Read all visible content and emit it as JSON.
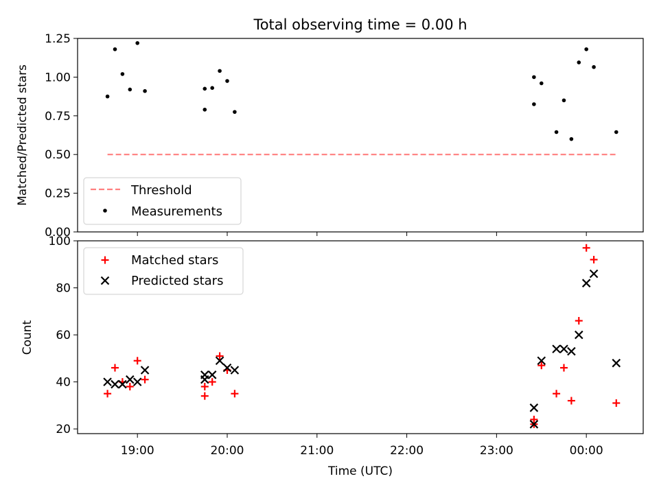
{
  "chart_data": [
    {
      "type": "scatter",
      "title": "Total observing time = 0.00 h",
      "ylabel": "Matched/Predicted stars",
      "xlim": [
        "18:20",
        "00:38"
      ],
      "ylim": [
        0,
        1.25
      ],
      "yticks": [
        0.0,
        0.25,
        0.5,
        0.75,
        1.0,
        1.25
      ],
      "ytick_labels": [
        "0.00",
        "0.25",
        "0.50",
        "0.75",
        "1.00",
        "1.25"
      ],
      "legend_position": "lower-left",
      "threshold": {
        "name": "Threshold",
        "color": "#ff7f7f",
        "x_start": "18:40",
        "x_end": "00:20",
        "y": 0.5
      },
      "series": [
        {
          "name": "Measurements",
          "color": "#000000",
          "marker": "dot",
          "x": [
            "18:40",
            "18:45",
            "18:50",
            "18:55",
            "19:00",
            "19:05",
            "19:45",
            "19:45",
            "19:50",
            "19:55",
            "20:00",
            "20:05",
            "23:25",
            "23:25",
            "23:30",
            "23:40",
            "23:45",
            "23:50",
            "23:55",
            "00:00",
            "00:05",
            "00:20"
          ],
          "y": [
            0.875,
            1.18,
            1.02,
            0.92,
            1.22,
            0.91,
            0.925,
            0.79,
            0.93,
            1.04,
            0.975,
            0.775,
            1.0,
            0.825,
            0.96,
            0.645,
            0.85,
            0.6,
            1.095,
            1.18,
            1.065,
            0.645
          ]
        }
      ]
    },
    {
      "type": "scatter",
      "xlabel": "Time (UTC)",
      "ylabel": "Count",
      "xlim": [
        "18:20",
        "00:38"
      ],
      "ylim": [
        18,
        100
      ],
      "yticks": [
        20,
        40,
        60,
        80,
        100
      ],
      "ytick_labels": [
        "20",
        "40",
        "60",
        "80",
        "100"
      ],
      "xticks": [
        "19:00",
        "20:00",
        "21:00",
        "22:00",
        "23:00",
        "00:00"
      ],
      "legend_position": "upper-left",
      "series": [
        {
          "name": "Matched stars",
          "color": "#ff0000",
          "marker": "plus",
          "x": [
            "18:40",
            "18:45",
            "18:50",
            "18:55",
            "19:00",
            "19:05",
            "19:45",
            "19:45",
            "19:50",
            "19:55",
            "20:00",
            "20:05",
            "23:25",
            "23:25",
            "23:30",
            "23:40",
            "23:45",
            "23:50",
            "23:55",
            "00:00",
            "00:05",
            "00:20"
          ],
          "y": [
            35,
            46,
            40,
            38,
            49,
            41,
            38,
            34,
            40,
            51,
            45,
            35,
            24,
            22,
            47,
            35,
            46,
            32,
            66,
            97,
            92,
            31
          ]
        },
        {
          "name": "Predicted stars",
          "color": "#000000",
          "marker": "x",
          "x": [
            "18:40",
            "18:45",
            "18:50",
            "18:55",
            "19:00",
            "19:05",
            "19:45",
            "19:45",
            "19:50",
            "19:55",
            "20:00",
            "20:05",
            "23:25",
            "23:25",
            "23:30",
            "23:40",
            "23:45",
            "23:50",
            "23:55",
            "00:00",
            "00:05",
            "00:20"
          ],
          "y": [
            40,
            39,
            39,
            41,
            40,
            45,
            41,
            43,
            43,
            49,
            46,
            45,
            29,
            22,
            49,
            54,
            54,
            53,
            60,
            82,
            86,
            48
          ]
        }
      ]
    }
  ]
}
